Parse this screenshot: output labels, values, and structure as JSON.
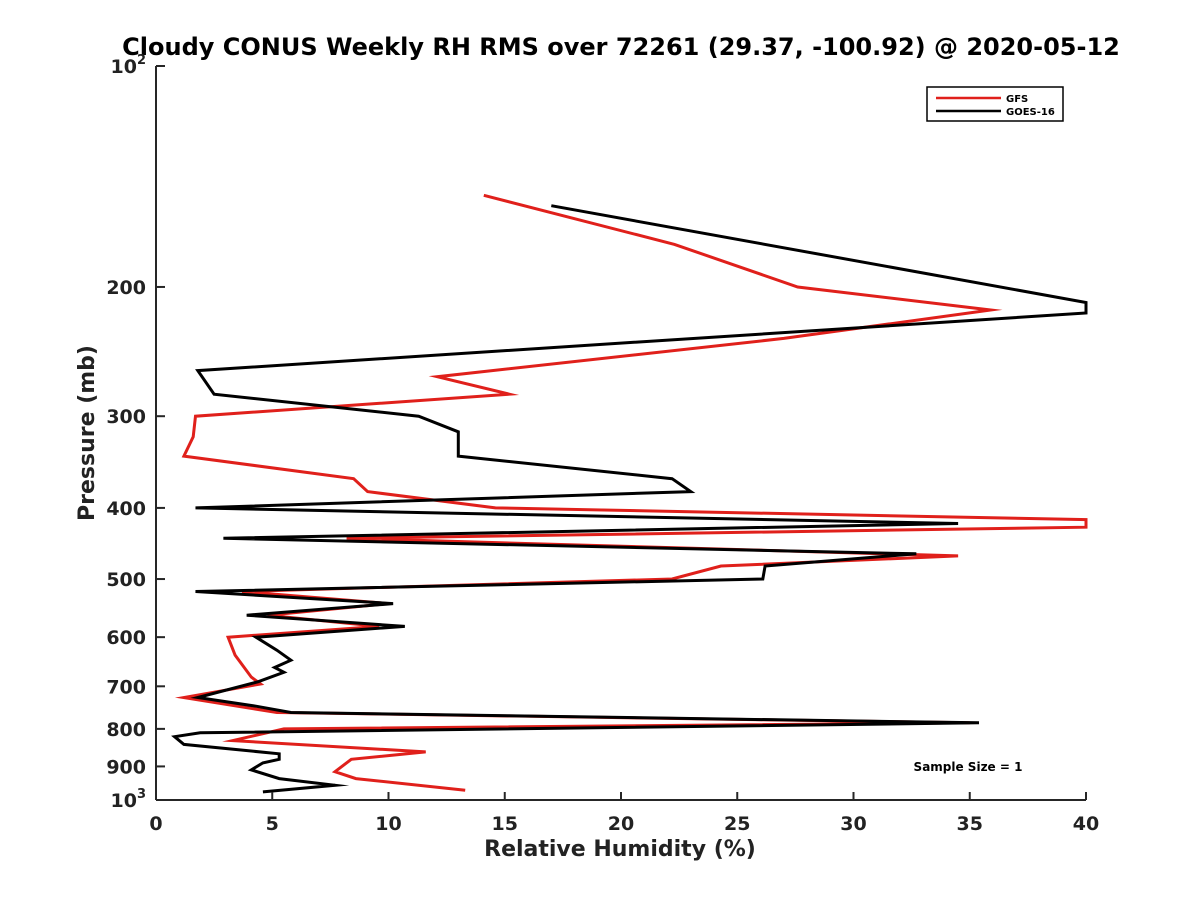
{
  "chart_data": {
    "type": "line",
    "title": "Cloudy CONUS Weekly RH RMS over 72261 (29.37, -100.92) @ 2020-05-12",
    "xlabel": "Relative Humidity (%)",
    "ylabel": "Pressure (mb)",
    "xlim": [
      0,
      40
    ],
    "ylim": [
      100,
      1000
    ],
    "y_scale": "log",
    "y_reversed": true,
    "x_ticks": [
      "0",
      "5",
      "10",
      "15",
      "20",
      "25",
      "30",
      "35",
      "40"
    ],
    "y_ticks": [
      {
        "value": 100,
        "base": "10",
        "exp": "2"
      },
      {
        "value": 200,
        "label": "200"
      },
      {
        "value": 300,
        "label": "300"
      },
      {
        "value": 400,
        "label": "400"
      },
      {
        "value": 500,
        "label": "500"
      },
      {
        "value": 600,
        "label": "600"
      },
      {
        "value": 700,
        "label": "700"
      },
      {
        "value": 800,
        "label": "800"
      },
      {
        "value": 900,
        "label": "900"
      },
      {
        "value": 1000,
        "base": "10",
        "exp": "3"
      }
    ],
    "grid": false,
    "legend_position": "top-right",
    "annotation": "Sample Size = 1",
    "series": [
      {
        "name": "GFS",
        "color": "#e0201b",
        "points": [
          [
            14.1,
            150
          ],
          [
            22.3,
            175
          ],
          [
            27.6,
            200
          ],
          [
            35.9,
            215
          ],
          [
            27.0,
            235
          ],
          [
            12.1,
            265
          ],
          [
            15.2,
            280
          ],
          [
            1.7,
            300
          ],
          [
            1.6,
            320
          ],
          [
            1.2,
            340
          ],
          [
            8.5,
            365
          ],
          [
            9.1,
            380
          ],
          [
            14.6,
            400
          ],
          [
            40.0,
            415
          ],
          [
            40.0,
            425
          ],
          [
            8.2,
            440
          ],
          [
            34.5,
            465
          ],
          [
            24.3,
            480
          ],
          [
            22.2,
            500
          ],
          [
            3.7,
            520
          ],
          [
            10.0,
            540
          ],
          [
            4.8,
            560
          ],
          [
            9.6,
            580
          ],
          [
            3.1,
            600
          ],
          [
            3.4,
            635
          ],
          [
            4.1,
            680
          ],
          [
            4.5,
            695
          ],
          [
            1.2,
            725
          ],
          [
            5.2,
            760
          ],
          [
            35.0,
            785
          ],
          [
            5.5,
            800
          ],
          [
            3.3,
            830
          ],
          [
            11.6,
            860
          ],
          [
            8.4,
            880
          ],
          [
            7.7,
            915
          ],
          [
            8.6,
            935
          ],
          [
            13.3,
            970
          ]
        ]
      },
      {
        "name": "GOES-16",
        "color": "#000000",
        "points": [
          [
            17.0,
            155
          ],
          [
            40.0,
            210
          ],
          [
            40.0,
            217
          ],
          [
            1.8,
            260
          ],
          [
            2.5,
            280
          ],
          [
            11.3,
            300
          ],
          [
            13.0,
            315
          ],
          [
            13.0,
            340
          ],
          [
            22.2,
            365
          ],
          [
            23.0,
            380
          ],
          [
            1.7,
            400
          ],
          [
            34.5,
            420
          ],
          [
            2.9,
            440
          ],
          [
            32.7,
            462
          ],
          [
            26.2,
            480
          ],
          [
            26.1,
            500
          ],
          [
            1.7,
            520
          ],
          [
            10.2,
            540
          ],
          [
            3.9,
            560
          ],
          [
            10.7,
            580
          ],
          [
            4.3,
            600
          ],
          [
            5.2,
            625
          ],
          [
            5.8,
            645
          ],
          [
            5.1,
            660
          ],
          [
            5.5,
            670
          ],
          [
            4.4,
            690
          ],
          [
            1.8,
            725
          ],
          [
            4.3,
            745
          ],
          [
            5.8,
            760
          ],
          [
            35.4,
            785
          ],
          [
            1.9,
            810
          ],
          [
            0.8,
            820
          ],
          [
            1.2,
            840
          ],
          [
            5.3,
            865
          ],
          [
            5.3,
            880
          ],
          [
            4.6,
            890
          ],
          [
            4.1,
            910
          ],
          [
            5.3,
            935
          ],
          [
            7.7,
            955
          ],
          [
            4.6,
            975
          ]
        ]
      }
    ]
  }
}
